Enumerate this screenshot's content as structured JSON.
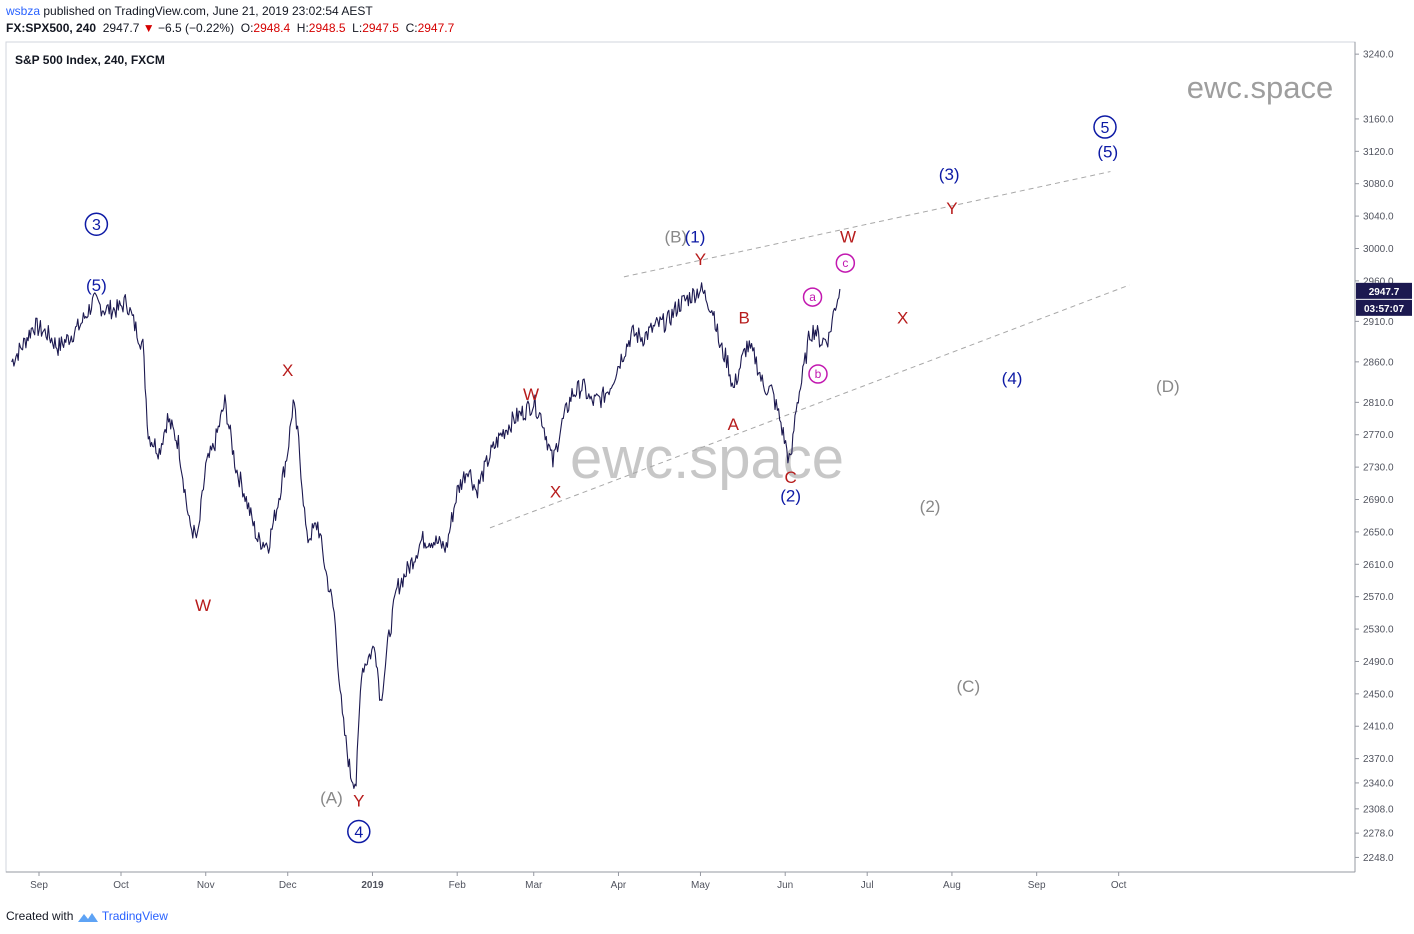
{
  "header": {
    "author": "wsbza",
    "published_text": " published on TradingView.com, June 21, 2019 23:02:54 AEST",
    "symbol": "FX:SPX500, 240",
    "last": "2947.7",
    "change": "−6.5 (−0.22%)",
    "o_label": "O:",
    "o": "2948.4",
    "h_label": "H:",
    "h": "2948.5",
    "l_label": "L:",
    "l": "2947.5",
    "c_label": "C:",
    "c": "2947.7"
  },
  "footer": {
    "created_with": "Created with",
    "brand": "TradingView"
  },
  "chart_data": {
    "type": "line",
    "title": "S&P 500 Index, 240, FXCM",
    "watermark": "ewc.space",
    "ylim": [
      2230,
      3255
    ],
    "y_ticks": [
      2248.0,
      2278.0,
      2308.0,
      2340.0,
      2370.0,
      2410.0,
      2450.0,
      2490.0,
      2530.0,
      2570.0,
      2610.0,
      2650.0,
      2690.0,
      2730.0,
      2770.0,
      2810.0,
      2860.0,
      2910.0,
      2960.0,
      3000.0,
      3040.0,
      3080.0,
      3120.0,
      3160.0,
      3240.0
    ],
    "x_ticks": [
      {
        "label": "Sep",
        "date": "2018-09-01"
      },
      {
        "label": "Oct",
        "date": "2018-10-01"
      },
      {
        "label": "Nov",
        "date": "2018-11-01"
      },
      {
        "label": "Dec",
        "date": "2018-12-01"
      },
      {
        "label": "2019",
        "date": "2019-01-01"
      },
      {
        "label": "Feb",
        "date": "2019-02-01"
      },
      {
        "label": "Mar",
        "date": "2019-03-01"
      },
      {
        "label": "Apr",
        "date": "2019-04-01"
      },
      {
        "label": "May",
        "date": "2019-05-01"
      },
      {
        "label": "Jun",
        "date": "2019-06-01"
      },
      {
        "label": "Jul",
        "date": "2019-07-01"
      },
      {
        "label": "Aug",
        "date": "2019-08-01"
      },
      {
        "label": "Sep",
        "date": "2019-09-01"
      },
      {
        "label": "Oct",
        "date": "2019-10-01"
      }
    ],
    "price_label": "2947.7",
    "countdown_label": "03:57:07",
    "series": [
      {
        "color": "#1c1950",
        "points": [
          [
            "2018-08-22",
            2860
          ],
          [
            "2018-08-26",
            2880
          ],
          [
            "2018-08-30",
            2905
          ],
          [
            "2018-09-04",
            2895
          ],
          [
            "2018-09-08",
            2878
          ],
          [
            "2018-09-12",
            2890
          ],
          [
            "2018-09-16",
            2905
          ],
          [
            "2018-09-21",
            2935
          ],
          [
            "2018-09-25",
            2925
          ],
          [
            "2018-09-30",
            2925
          ],
          [
            "2018-10-03",
            2935
          ],
          [
            "2018-10-06",
            2905
          ],
          [
            "2018-10-09",
            2880
          ],
          [
            "2018-10-11",
            2770
          ],
          [
            "2018-10-15",
            2750
          ],
          [
            "2018-10-18",
            2790
          ],
          [
            "2018-10-22",
            2760
          ],
          [
            "2018-10-26",
            2660
          ],
          [
            "2018-10-29",
            2640
          ],
          [
            "2018-11-01",
            2730
          ],
          [
            "2018-11-04",
            2755
          ],
          [
            "2018-11-08",
            2810
          ],
          [
            "2018-11-12",
            2730
          ],
          [
            "2018-11-15",
            2700
          ],
          [
            "2018-11-20",
            2640
          ],
          [
            "2018-11-24",
            2635
          ],
          [
            "2018-11-27",
            2680
          ],
          [
            "2018-12-01",
            2750
          ],
          [
            "2018-12-03",
            2810
          ],
          [
            "2018-12-05",
            2760
          ],
          [
            "2018-12-08",
            2640
          ],
          [
            "2018-12-12",
            2660
          ],
          [
            "2018-12-15",
            2600
          ],
          [
            "2018-12-18",
            2550
          ],
          [
            "2018-12-21",
            2420
          ],
          [
            "2018-12-24",
            2350
          ],
          [
            "2018-12-26",
            2340
          ],
          [
            "2018-12-28",
            2480
          ],
          [
            "2019-01-02",
            2510
          ],
          [
            "2019-01-04",
            2440
          ],
          [
            "2019-01-07",
            2520
          ],
          [
            "2019-01-10",
            2580
          ],
          [
            "2019-01-15",
            2610
          ],
          [
            "2019-01-19",
            2640
          ],
          [
            "2019-01-23",
            2640
          ],
          [
            "2019-01-28",
            2630
          ],
          [
            "2019-02-01",
            2700
          ],
          [
            "2019-02-05",
            2730
          ],
          [
            "2019-02-08",
            2700
          ],
          [
            "2019-02-13",
            2745
          ],
          [
            "2019-02-17",
            2770
          ],
          [
            "2019-02-22",
            2790
          ],
          [
            "2019-02-26",
            2800
          ],
          [
            "2019-03-01",
            2810
          ],
          [
            "2019-03-04",
            2790
          ],
          [
            "2019-03-08",
            2735
          ],
          [
            "2019-03-11",
            2780
          ],
          [
            "2019-03-15",
            2820
          ],
          [
            "2019-03-19",
            2830
          ],
          [
            "2019-03-22",
            2810
          ],
          [
            "2019-03-26",
            2815
          ],
          [
            "2019-03-29",
            2830
          ],
          [
            "2019-04-02",
            2865
          ],
          [
            "2019-04-06",
            2895
          ],
          [
            "2019-04-10",
            2890
          ],
          [
            "2019-04-15",
            2905
          ],
          [
            "2019-04-19",
            2910
          ],
          [
            "2019-04-23",
            2930
          ],
          [
            "2019-04-27",
            2940
          ],
          [
            "2019-05-01",
            2950
          ],
          [
            "2019-05-03",
            2940
          ],
          [
            "2019-05-06",
            2920
          ],
          [
            "2019-05-08",
            2880
          ],
          [
            "2019-05-11",
            2860
          ],
          [
            "2019-05-13",
            2825
          ],
          [
            "2019-05-16",
            2860
          ],
          [
            "2019-05-18",
            2880
          ],
          [
            "2019-05-21",
            2865
          ],
          [
            "2019-05-24",
            2830
          ],
          [
            "2019-05-27",
            2825
          ],
          [
            "2019-05-30",
            2790
          ],
          [
            "2019-06-02",
            2745
          ],
          [
            "2019-06-03",
            2735
          ],
          [
            "2019-06-05",
            2805
          ],
          [
            "2019-06-07",
            2835
          ],
          [
            "2019-06-10",
            2895
          ],
          [
            "2019-06-12",
            2900
          ],
          [
            "2019-06-14",
            2885
          ],
          [
            "2019-06-17",
            2890
          ],
          [
            "2019-06-19",
            2925
          ],
          [
            "2019-06-21",
            2950
          ]
        ]
      }
    ],
    "trendlines": [
      {
        "from": [
          "2019-04-03",
          2965
        ],
        "to": [
          "2019-09-28",
          3095
        ]
      },
      {
        "from": [
          "2019-02-13",
          2655
        ],
        "to": [
          "2019-10-05",
          2955
        ]
      }
    ],
    "annotations": [
      {
        "text": "3",
        "date": "2018-09-22",
        "y": 3030,
        "color": "#0d1aa5",
        "style": "circle"
      },
      {
        "text": "(5)",
        "date": "2018-09-22",
        "y": 2955,
        "color": "#0d1aa5",
        "style": "plain"
      },
      {
        "text": "X",
        "date": "2018-12-01",
        "y": 2850,
        "color": "#b71c1c",
        "style": "plain"
      },
      {
        "text": "W",
        "date": "2018-10-31",
        "y": 2560,
        "color": "#b71c1c",
        "style": "plain"
      },
      {
        "text": "(A)",
        "date": "2018-12-17",
        "y": 2322,
        "color": "#888888",
        "style": "plain"
      },
      {
        "text": "Y",
        "date": "2018-12-27",
        "y": 2318,
        "color": "#b71c1c",
        "style": "plain"
      },
      {
        "text": "4",
        "date": "2018-12-27",
        "y": 2280,
        "color": "#0d1aa5",
        "style": "circle"
      },
      {
        "text": "W",
        "date": "2019-02-28",
        "y": 2820,
        "color": "#b71c1c",
        "style": "plain"
      },
      {
        "text": "X",
        "date": "2019-03-09",
        "y": 2700,
        "color": "#b71c1c",
        "style": "plain"
      },
      {
        "text": "(B)",
        "date": "2019-04-22",
        "y": 3015,
        "color": "#888888",
        "style": "plain"
      },
      {
        "text": "(1)",
        "date": "2019-04-29",
        "y": 3015,
        "color": "#0d1aa5",
        "style": "plain"
      },
      {
        "text": "Y",
        "date": "2019-05-01",
        "y": 2987,
        "color": "#b71c1c",
        "style": "plain"
      },
      {
        "text": "B",
        "date": "2019-05-17",
        "y": 2915,
        "color": "#b71c1c",
        "style": "plain"
      },
      {
        "text": "A",
        "date": "2019-05-13",
        "y": 2783,
        "color": "#b71c1c",
        "style": "plain"
      },
      {
        "text": "C",
        "date": "2019-06-03",
        "y": 2718,
        "color": "#b71c1c",
        "style": "plain"
      },
      {
        "text": "(2)",
        "date": "2019-06-03",
        "y": 2695,
        "color": "#0d1aa5",
        "style": "plain"
      },
      {
        "text": "a",
        "date": "2019-06-11",
        "y": 2940,
        "color": "#c218b0",
        "style": "circle"
      },
      {
        "text": "b",
        "date": "2019-06-13",
        "y": 2845,
        "color": "#c218b0",
        "style": "circle"
      },
      {
        "text": "c",
        "date": "2019-06-23",
        "y": 2982,
        "color": "#c218b0",
        "style": "circle"
      },
      {
        "text": "W",
        "date": "2019-06-24",
        "y": 3015,
        "color": "#b71c1c",
        "style": "plain"
      },
      {
        "text": "X",
        "date": "2019-07-14",
        "y": 2915,
        "color": "#b71c1c",
        "style": "plain"
      },
      {
        "text": "(3)",
        "date": "2019-07-31",
        "y": 3092,
        "color": "#0d1aa5",
        "style": "plain"
      },
      {
        "text": "Y",
        "date": "2019-08-01",
        "y": 3050,
        "color": "#b71c1c",
        "style": "plain"
      },
      {
        "text": "(4)",
        "date": "2019-08-23",
        "y": 2840,
        "color": "#0d1aa5",
        "style": "plain"
      },
      {
        "text": "(2)",
        "date": "2019-07-24",
        "y": 2682,
        "color": "#888888",
        "style": "plain"
      },
      {
        "text": "(C)",
        "date": "2019-08-07",
        "y": 2460,
        "color": "#888888",
        "style": "plain"
      },
      {
        "text": "(D)",
        "date": "2019-10-19",
        "y": 2830,
        "color": "#888888",
        "style": "plain"
      },
      {
        "text": "5",
        "date": "2019-09-26",
        "y": 3150,
        "color": "#0d1aa5",
        "style": "circle"
      },
      {
        "text": "(5)",
        "date": "2019-09-27",
        "y": 3120,
        "color": "#0d1aa5",
        "style": "plain"
      }
    ]
  }
}
